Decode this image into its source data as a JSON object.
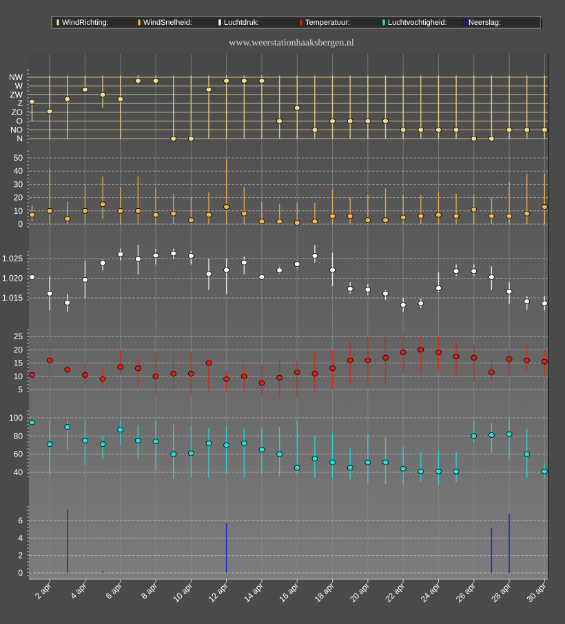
{
  "site_url": "www.weerstationhaaksbergen.nl",
  "legend": [
    {
      "label": "WindRichting:",
      "color": "#f5dc8c"
    },
    {
      "label": "WindSnelheid:",
      "color": "#f0b450"
    },
    {
      "label": "Luchtdruk:",
      "color": "#ffffff"
    },
    {
      "label": "Temperatuur:",
      "color": "#e02010"
    },
    {
      "label": "Luchtvochtigheid:",
      "color": "#20e0e0"
    },
    {
      "label": "Neerslag:",
      "color": "#1020c8"
    }
  ],
  "chart_data": [
    {
      "type": "scatter",
      "name": "WindRichting",
      "x": [
        "1 apr",
        "2 apr",
        "3 apr",
        "4 apr",
        "5 apr",
        "6 apr",
        "7 apr",
        "8 apr",
        "9 apr",
        "10 apr",
        "11 apr",
        "12 apr",
        "13 apr",
        "14 apr",
        "15 apr",
        "16 apr",
        "17 apr",
        "18 apr",
        "19 apr",
        "20 apr",
        "21 apr",
        "22 apr",
        "23 apr",
        "24 apr",
        "25 apr",
        "26 apr",
        "27 apr",
        "28 apr",
        "29 apr",
        "30 apr"
      ],
      "y_tick_labels": [
        "N",
        "NO",
        "O",
        "ZO",
        "Z",
        "ZW",
        "W",
        "NW"
      ],
      "values": [
        4.2,
        3.1,
        4.5,
        5.6,
        5.0,
        4.5,
        6.6,
        6.6,
        0,
        0,
        5.6,
        6.6,
        6.6,
        6.6,
        2,
        3.5,
        1,
        2,
        2,
        2,
        2,
        1,
        1,
        1,
        1,
        0,
        0,
        1,
        1,
        1
      ],
      "min": [
        2,
        0,
        0,
        6,
        3.5,
        0,
        6.2,
        6.2,
        0,
        0,
        0,
        0,
        0,
        0,
        0,
        0,
        0,
        0,
        0,
        0,
        0,
        0,
        0,
        0,
        0,
        0,
        0,
        0,
        0,
        0
      ],
      "max": [
        4.5,
        7.2,
        7.2,
        7.2,
        7.2,
        7.2,
        7.2,
        7.2,
        7.2,
        7.2,
        7.2,
        7.2,
        7.2,
        7.2,
        7.2,
        7.2,
        7.2,
        7.2,
        7.2,
        7.2,
        7.2,
        7.2,
        7.2,
        7.2,
        7.2,
        7.2,
        7.2,
        7.2,
        7.2,
        7.2
      ]
    },
    {
      "type": "scatter",
      "name": "WindSnelheid",
      "y_ticks": [
        0,
        10,
        20,
        30,
        40,
        50
      ],
      "values": [
        7,
        10,
        4,
        10,
        15,
        10,
        10,
        7,
        8,
        3,
        7,
        13,
        8,
        2,
        2,
        1,
        2,
        6,
        6,
        3,
        3,
        5,
        6,
        7,
        6,
        11,
        6,
        6,
        8,
        13
      ],
      "min": [
        2,
        0,
        0,
        0,
        4,
        0,
        0,
        0,
        0,
        0,
        0,
        0,
        0,
        0,
        0,
        0,
        0,
        0,
        0,
        0,
        0,
        0,
        0,
        0,
        0,
        0,
        0,
        0,
        0,
        0
      ],
      "max": [
        14,
        42,
        17,
        30,
        36,
        28,
        36,
        27,
        23,
        20,
        24,
        49,
        28,
        17,
        15,
        16,
        16,
        26,
        20,
        22,
        27,
        22,
        22,
        24,
        23,
        22,
        20,
        32,
        38,
        38
      ]
    },
    {
      "type": "scatter",
      "name": "Luchtdruk",
      "y_ticks": [
        1.015,
        1.02,
        1.025
      ],
      "values": [
        1.0203,
        1.0161,
        1.0138,
        1.0196,
        1.0239,
        1.0261,
        1.0249,
        1.0258,
        1.0263,
        1.0257,
        1.0211,
        1.0221,
        1.024,
        1.0203,
        1.022,
        1.0236,
        1.0257,
        1.0221,
        1.0173,
        1.0171,
        1.0161,
        1.0132,
        1.0136,
        1.0175,
        1.0218,
        1.0218,
        1.0203,
        1.0166,
        1.0141,
        1.0136
      ],
      "min": [
        1.0195,
        1.0118,
        1.0115,
        1.015,
        1.022,
        1.0245,
        1.021,
        1.0235,
        1.025,
        1.0235,
        1.017,
        1.016,
        1.021,
        1.0195,
        1.0212,
        1.0225,
        1.024,
        1.018,
        1.016,
        1.0158,
        1.0145,
        1.0115,
        1.0125,
        1.0165,
        1.0205,
        1.0205,
        1.017,
        1.0135,
        1.012,
        1.0118
      ],
      "max": [
        1.0208,
        1.0205,
        1.016,
        1.0245,
        1.0248,
        1.0275,
        1.0285,
        1.0275,
        1.0275,
        1.027,
        1.025,
        1.025,
        1.0255,
        1.021,
        1.023,
        1.0245,
        1.0285,
        1.0265,
        1.019,
        1.0185,
        1.017,
        1.015,
        1.0148,
        1.0215,
        1.0235,
        1.0235,
        1.023,
        1.019,
        1.0155,
        1.0155
      ]
    },
    {
      "type": "scatter",
      "name": "Temperatuur",
      "y_ticks": [
        5,
        10,
        15,
        20,
        25
      ],
      "values": [
        10.5,
        16,
        12.5,
        10.5,
        9,
        13.5,
        13,
        10,
        11,
        11,
        15,
        9,
        10,
        7.5,
        9.5,
        11.5,
        11,
        13,
        16,
        16,
        17,
        19,
        20,
        19,
        17.5,
        17,
        11.5,
        16.5,
        16,
        15.5
      ],
      "min": [
        10,
        9,
        10,
        7,
        6,
        11,
        6,
        3,
        5,
        3,
        4,
        4,
        4,
        2,
        2,
        2,
        4,
        5,
        7,
        6,
        7,
        11,
        11,
        12,
        10,
        8,
        8,
        10,
        12,
        10
      ],
      "max": [
        11,
        23,
        14,
        15,
        13,
        20,
        17,
        19,
        18,
        19,
        17,
        12,
        14,
        14,
        17,
        16,
        19,
        20,
        23,
        25,
        26,
        26,
        26,
        25,
        23,
        22,
        17,
        20,
        22,
        20
      ]
    },
    {
      "type": "scatter",
      "name": "Luchtvochtigheid",
      "y_ticks": [
        40,
        60,
        80,
        100
      ],
      "values": [
        95,
        71,
        90,
        75,
        71,
        87,
        75,
        74,
        60,
        61,
        72,
        70,
        72,
        65,
        60,
        45,
        55,
        51,
        45,
        51,
        51,
        44,
        41,
        41,
        41,
        80,
        81,
        82,
        60,
        41
      ],
      "min": [
        93,
        37,
        65,
        48,
        55,
        70,
        55,
        42,
        33,
        35,
        34,
        38,
        34,
        38,
        36,
        38,
        34,
        33,
        32,
        28,
        27,
        26,
        30,
        26,
        29,
        73,
        61,
        55,
        34,
        34
      ],
      "max": [
        97,
        97,
        97,
        97,
        80,
        97,
        92,
        97,
        93,
        92,
        89,
        91,
        89,
        88,
        90,
        97,
        80,
        83,
        67,
        82,
        78,
        68,
        62,
        64,
        62,
        97,
        94,
        98,
        88,
        50
      ]
    },
    {
      "type": "bar",
      "name": "Neerslag",
      "y_ticks": [
        0,
        2,
        4,
        6
      ],
      "values": [
        0.1,
        0,
        7.2,
        0,
        0.2,
        0,
        0,
        0,
        0,
        0,
        0,
        5.7,
        0,
        0,
        0,
        0,
        0,
        0,
        0,
        0,
        0,
        0,
        0,
        0,
        0,
        0,
        5.1,
        6.8,
        0,
        0
      ]
    }
  ],
  "x_axis_labels": [
    "2 apr",
    "4 apr",
    "6 apr",
    "8 apr",
    "10 apr",
    "12 apr",
    "14 apr",
    "16 apr",
    "18 apr",
    "20 apr",
    "22 apr",
    "24 apr",
    "26 apr",
    "28 apr",
    "30 apr"
  ]
}
